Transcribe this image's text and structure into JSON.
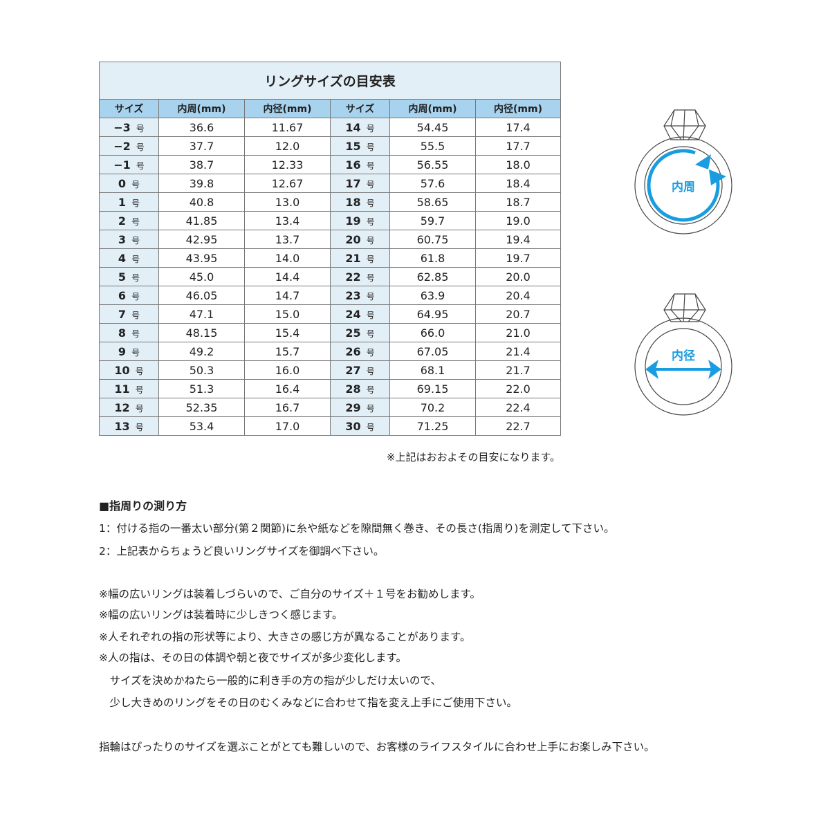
{
  "table": {
    "title": "リングサイズの目安表",
    "headers": [
      "サイズ",
      "内周(mm)",
      "内径(mm)",
      "サイズ",
      "内周(mm)",
      "内径(mm)"
    ],
    "unit": "号",
    "rows": [
      [
        "−3",
        "36.6",
        "11.67",
        "14",
        "54.45",
        "17.4"
      ],
      [
        "−2",
        "37.7",
        "12.0",
        "15",
        "55.5",
        "17.7"
      ],
      [
        "−1",
        "38.7",
        "12.33",
        "16",
        "56.55",
        "18.0"
      ],
      [
        "0",
        "39.8",
        "12.67",
        "17",
        "57.6",
        "18.4"
      ],
      [
        "1",
        "40.8",
        "13.0",
        "18",
        "58.65",
        "18.7"
      ],
      [
        "2",
        "41.85",
        "13.4",
        "19",
        "59.7",
        "19.0"
      ],
      [
        "3",
        "42.95",
        "13.7",
        "20",
        "60.75",
        "19.4"
      ],
      [
        "4",
        "43.95",
        "14.0",
        "21",
        "61.8",
        "19.7"
      ],
      [
        "5",
        "45.0",
        "14.4",
        "22",
        "62.85",
        "20.0"
      ],
      [
        "6",
        "46.05",
        "14.7",
        "23",
        "63.9",
        "20.4"
      ],
      [
        "7",
        "47.1",
        "15.0",
        "24",
        "64.95",
        "20.7"
      ],
      [
        "8",
        "48.15",
        "15.4",
        "25",
        "66.0",
        "21.0"
      ],
      [
        "9",
        "49.2",
        "15.7",
        "26",
        "67.05",
        "21.4"
      ],
      [
        "10",
        "50.3",
        "16.0",
        "27",
        "68.1",
        "21.7"
      ],
      [
        "11",
        "51.3",
        "16.4",
        "28",
        "69.15",
        "22.0"
      ],
      [
        "12",
        "52.35",
        "16.7",
        "29",
        "70.2",
        "22.4"
      ],
      [
        "13",
        "53.4",
        "17.0",
        "30",
        "71.25",
        "22.7"
      ]
    ],
    "note": "※上記はおおよその目安になります。"
  },
  "illustrations": {
    "circumference_label": "内周",
    "diameter_label": "内径",
    "accent": "#1a9de0"
  },
  "instructions": {
    "heading": "■指周りの測り方",
    "steps": [
      "1：付ける指の一番太い部分(第２関節)に糸や紙などを隙間無く巻き、その長さ(指周り)を測定して下さい。",
      "2：上記表からちょうど良いリングサイズを御調べ下さい。"
    ],
    "notes": [
      "※幅の広いリングは装着しづらいので、ご自分のサイズ＋１号をお勧めします。",
      "※幅の広いリングは装着時に少しきつく感じます。",
      "※人それぞれの指の形状等により、大きさの感じ方が異なることがあります。",
      "※人の指は、その日の体調や朝と夜でサイズが多少変化します。",
      "　サイズを決めかねたら一般的に利き手の方の指が少しだけ太いので、",
      "　少し大きめのリングをその日のむくみなどに合わせて指を変え上手にご使用下さい。"
    ],
    "closing": "指輪はぴったりのサイズを選ぶことがとても難しいので、お客様のライフスタイルに合わせ上手にお楽しみ下さい。"
  }
}
